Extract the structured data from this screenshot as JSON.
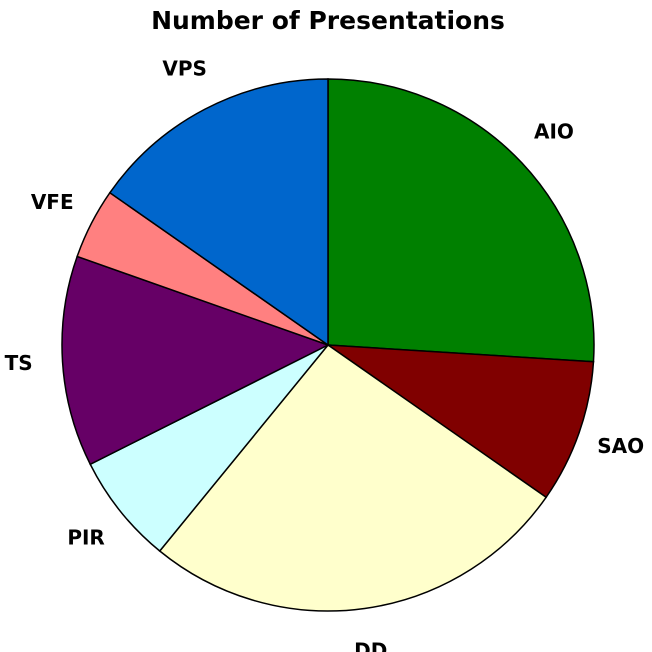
{
  "chart_data": {
    "type": "pie",
    "title": "Number of Presentations",
    "categories": [
      "AIO",
      "SAO",
      "DD",
      "PIR",
      "TS",
      "VFE",
      "VPS"
    ],
    "values": [
      26,
      8.7,
      26.2,
      6.7,
      12.8,
      4.3,
      15.3
    ],
    "colors": [
      "#008000",
      "#800000",
      "#ffffcc",
      "#ccffff",
      "#660066",
      "#ff8080",
      "#0066cc"
    ]
  }
}
